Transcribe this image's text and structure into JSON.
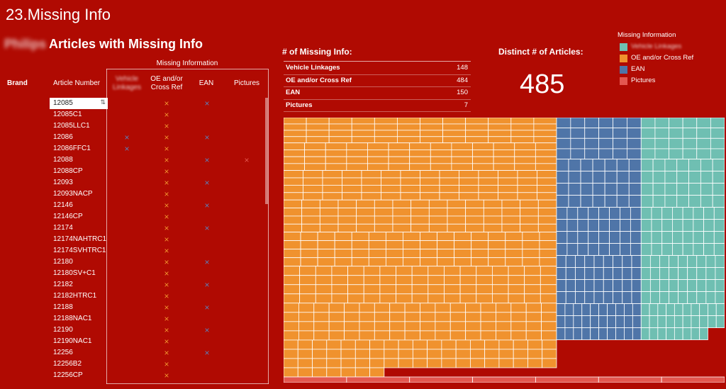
{
  "page_title": "23.Missing Info",
  "sheet_title": {
    "blurred_brand": "Philips",
    "text": "Articles with Missing Info"
  },
  "table": {
    "col_brand": "Brand",
    "col_article": "Article Number",
    "group_header": "Missing Information",
    "col_vehicle": "Vehicle Linkages",
    "col_oe": "OE and/or Cross Ref",
    "col_ean": "EAN",
    "col_pictures": "Pictures",
    "mark": "×",
    "rows": [
      {
        "article": "12085",
        "v": false,
        "o": true,
        "e": true,
        "p": false
      },
      {
        "article": "12085C1",
        "v": false,
        "o": true,
        "e": false,
        "p": false
      },
      {
        "article": "12085LLC1",
        "v": false,
        "o": true,
        "e": false,
        "p": false
      },
      {
        "article": "12086",
        "v": true,
        "o": true,
        "e": true,
        "p": false
      },
      {
        "article": "12086FFC1",
        "v": true,
        "o": true,
        "e": false,
        "p": false
      },
      {
        "article": "12088",
        "v": false,
        "o": true,
        "e": true,
        "p": true
      },
      {
        "article": "12088CP",
        "v": false,
        "o": true,
        "e": false,
        "p": false
      },
      {
        "article": "12093",
        "v": false,
        "o": true,
        "e": true,
        "p": false
      },
      {
        "article": "12093NACP",
        "v": false,
        "o": true,
        "e": false,
        "p": false
      },
      {
        "article": "12146",
        "v": false,
        "o": true,
        "e": true,
        "p": false
      },
      {
        "article": "12146CP",
        "v": false,
        "o": true,
        "e": false,
        "p": false
      },
      {
        "article": "12174",
        "v": false,
        "o": true,
        "e": true,
        "p": false
      },
      {
        "article": "12174NAHTRC1",
        "v": false,
        "o": true,
        "e": false,
        "p": false
      },
      {
        "article": "12174SVHTRC1",
        "v": false,
        "o": true,
        "e": false,
        "p": false
      },
      {
        "article": "12180",
        "v": false,
        "o": true,
        "e": true,
        "p": false
      },
      {
        "article": "12180SV+C1",
        "v": false,
        "o": true,
        "e": false,
        "p": false
      },
      {
        "article": "12182",
        "v": false,
        "o": true,
        "e": true,
        "p": false
      },
      {
        "article": "12182HTRC1",
        "v": false,
        "o": true,
        "e": false,
        "p": false
      },
      {
        "article": "12188",
        "v": false,
        "o": true,
        "e": true,
        "p": false
      },
      {
        "article": "12188NAC1",
        "v": false,
        "o": true,
        "e": false,
        "p": false
      },
      {
        "article": "12190",
        "v": false,
        "o": true,
        "e": true,
        "p": false
      },
      {
        "article": "12190NAC1",
        "v": false,
        "o": true,
        "e": false,
        "p": false
      },
      {
        "article": "12256",
        "v": false,
        "o": true,
        "e": true,
        "p": false
      },
      {
        "article": "12256B2",
        "v": false,
        "o": true,
        "e": false,
        "p": false
      },
      {
        "article": "12256CP",
        "v": false,
        "o": true,
        "e": false,
        "p": false
      }
    ]
  },
  "missing_summary": {
    "title": "# of Missing Info:",
    "rows": [
      {
        "label": "Vehicle Linkages",
        "value": "148"
      },
      {
        "label": "OE and/or Cross Ref",
        "value": "484"
      },
      {
        "label": "EAN",
        "value": "150"
      },
      {
        "label": "Pictures",
        "value": "7"
      }
    ]
  },
  "distinct": {
    "title": "Distinct # of Articles:",
    "value": "485"
  },
  "legend": {
    "title": "Missing Information",
    "items": [
      {
        "label": "Vehicle Linkages",
        "color": "#6fbfb2",
        "blurred": true
      },
      {
        "label": "OE and/or Cross Ref",
        "color": "#f0922e",
        "blurred": false
      },
      {
        "label": "EAN",
        "color": "#4f75a8",
        "blurred": false
      },
      {
        "label": "Pictures",
        "color": "#e3574f",
        "blurred": false
      }
    ]
  },
  "colors": {
    "background": "#b00a02",
    "orange": "#f0922e",
    "blue": "#4f75a8",
    "teal": "#6fbfb2",
    "red": "#e3574f",
    "blue_mark": "#5c7fb8"
  },
  "chart_data": {
    "type": "treemap",
    "categories": [
      "OE and/or Cross Ref",
      "EAN",
      "Vehicle Linkages",
      "Pictures"
    ],
    "values": [
      484,
      150,
      148,
      7
    ]
  }
}
